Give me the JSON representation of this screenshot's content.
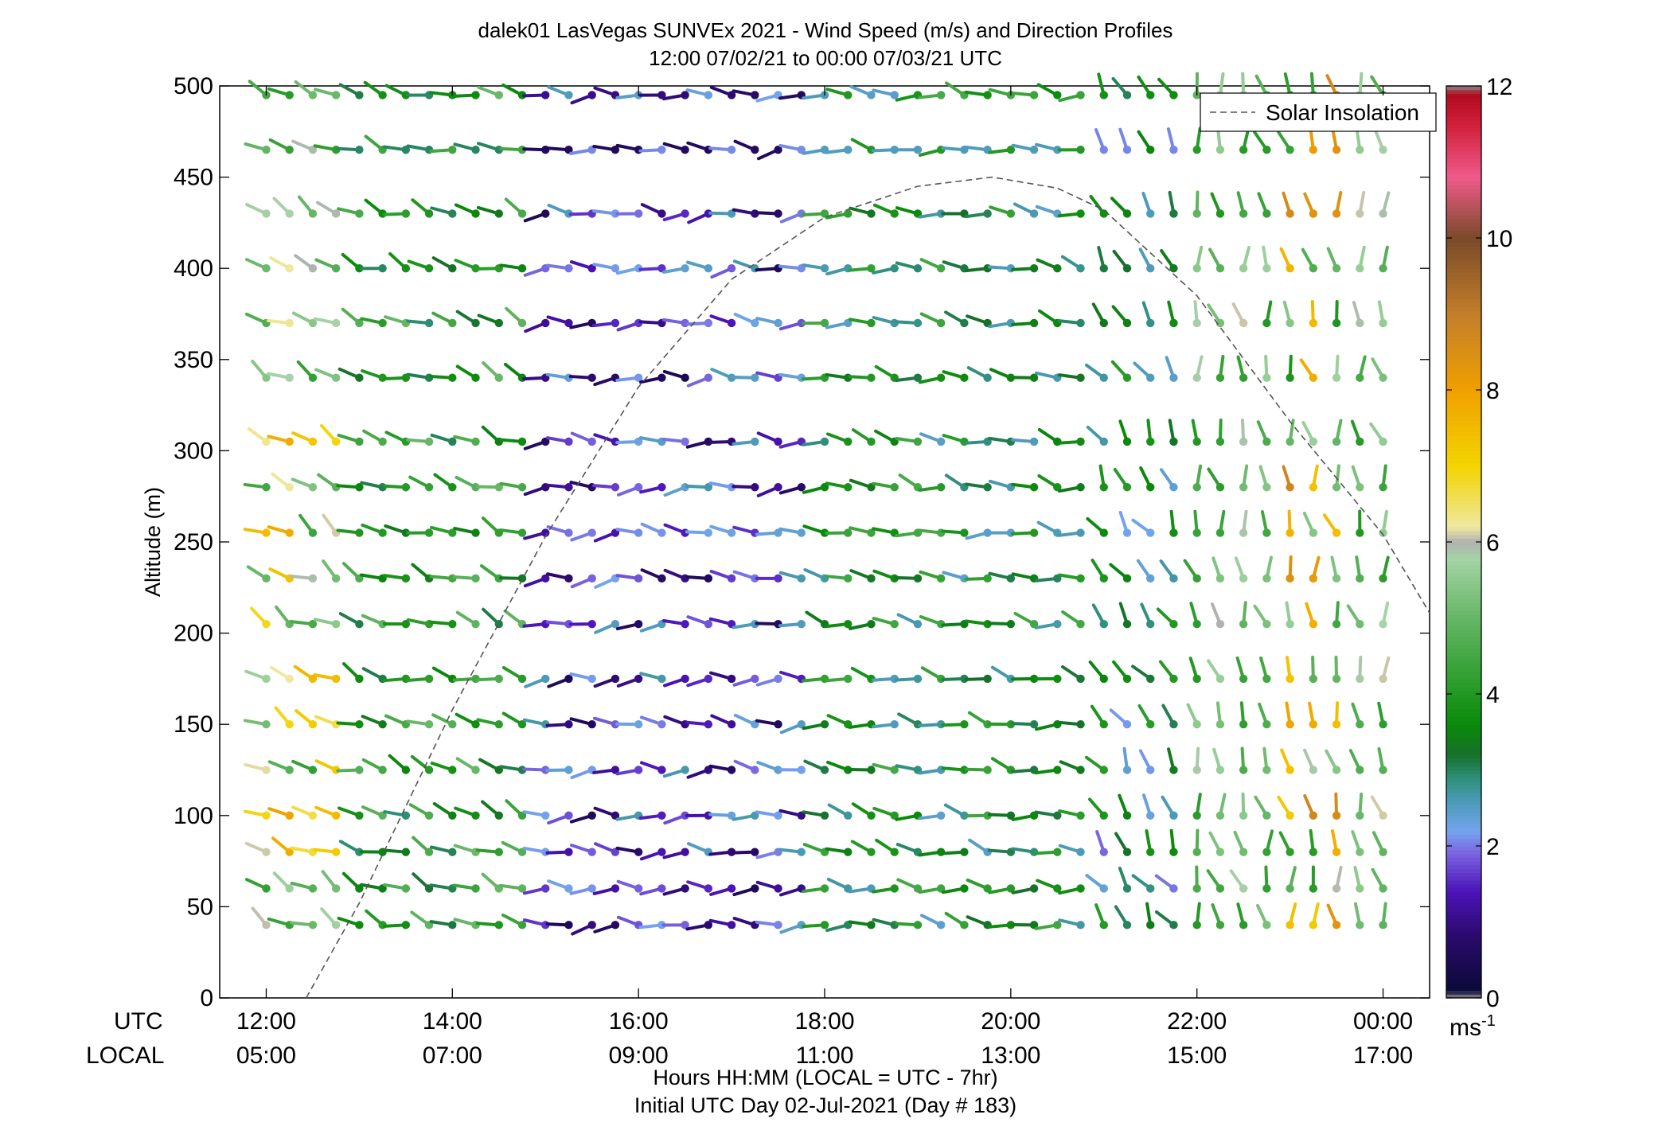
{
  "title_line1": "dalek01 LasVegas SUNVEx 2021 - Wind Speed (m/s) and Direction Profiles",
  "title_line2": "12:00 07/02/21 to 00:00 07/03/21  UTC",
  "ylabel": "Altitude (m)",
  "xlabel_line1": "Hours HH:MM  (LOCAL = UTC - 7hr)",
  "xlabel_line2": "Initial UTC Day 02-Jul-2021 (Day # 183)",
  "utc_row_label": "UTC",
  "local_row_label": "LOCAL",
  "legend_label": "Solar Insolation",
  "colorbar_unit": "ms",
  "colorbar_unit_exp": "-1",
  "chart_data": {
    "type": "wind-barb profile (time-altitude)",
    "x_utc_hours_range": [
      11.5,
      24.5
    ],
    "ylim": [
      0,
      500
    ],
    "x_ticks_utc": [
      "12:00",
      "14:00",
      "16:00",
      "18:00",
      "20:00",
      "22:00",
      "00:00"
    ],
    "x_ticks_local": [
      "05:00",
      "07:00",
      "09:00",
      "11:00",
      "13:00",
      "15:00",
      "17:00"
    ],
    "y_ticks": [
      "0",
      "50",
      "100",
      "150",
      "200",
      "250",
      "300",
      "350",
      "400",
      "450",
      "500"
    ],
    "colorbar": {
      "range": [
        0,
        12
      ],
      "ticks": [
        "0",
        "2",
        "4",
        "6",
        "8",
        "10",
        "12"
      ]
    },
    "series": [
      {
        "name": "Solar Insolation",
        "style": "dashed",
        "color": "#555555",
        "x_utc_hours": [
          12.43,
          13.0,
          14.0,
          15.0,
          16.0,
          17.0,
          18.0,
          19.0,
          19.8,
          20.5,
          21.0,
          22.0,
          23.0,
          24.0,
          24.5
        ],
        "y_altitude_equiv": [
          0,
          52,
          158,
          253,
          335,
          394,
          428,
          445,
          450,
          444,
          432,
          385,
          316,
          254,
          211
        ]
      }
    ],
    "profiles": {
      "times_utc_hours": [
        12.0,
        12.25,
        12.5,
        12.75,
        13.0,
        13.25,
        13.5,
        13.75,
        14.0,
        14.25,
        14.5,
        14.75,
        15.0,
        15.25,
        15.5,
        15.75,
        16.0,
        16.25,
        16.5,
        16.75,
        17.0,
        17.25,
        17.5,
        17.75,
        18.0,
        18.25,
        18.5,
        18.75,
        19.0,
        19.25,
        19.5,
        19.75,
        20.0,
        20.25,
        20.5,
        20.75,
        21.0,
        21.25,
        21.5,
        21.75,
        22.0,
        22.25,
        22.5,
        22.75,
        23.0,
        23.25,
        23.5,
        23.75,
        24.0
      ],
      "altitudes_m": [
        40,
        60,
        80,
        100,
        125,
        150,
        175,
        205,
        230,
        255,
        280,
        305,
        340,
        370,
        400,
        430,
        465,
        495
      ],
      "speed_ms_by_time_period": [
        {
          "utc": "12:00-13:00",
          "speed_ms": 5.2,
          "direction_deg": 300
        },
        {
          "utc": "13:00-15:00",
          "speed_ms": 4.0,
          "direction_deg": 290
        },
        {
          "utc": "15:00-18:00",
          "speed_ms": 1.6,
          "direction_deg": 270
        },
        {
          "utc": "18:00-21:00",
          "speed_ms": 3.5,
          "direction_deg": 280
        },
        {
          "utc": "21:00-22:00",
          "speed_ms": 3.0,
          "direction_deg": 330
        },
        {
          "utc": "22:00-24:00",
          "speed_ms": 5.0,
          "direction_deg": 350
        }
      ]
    }
  }
}
